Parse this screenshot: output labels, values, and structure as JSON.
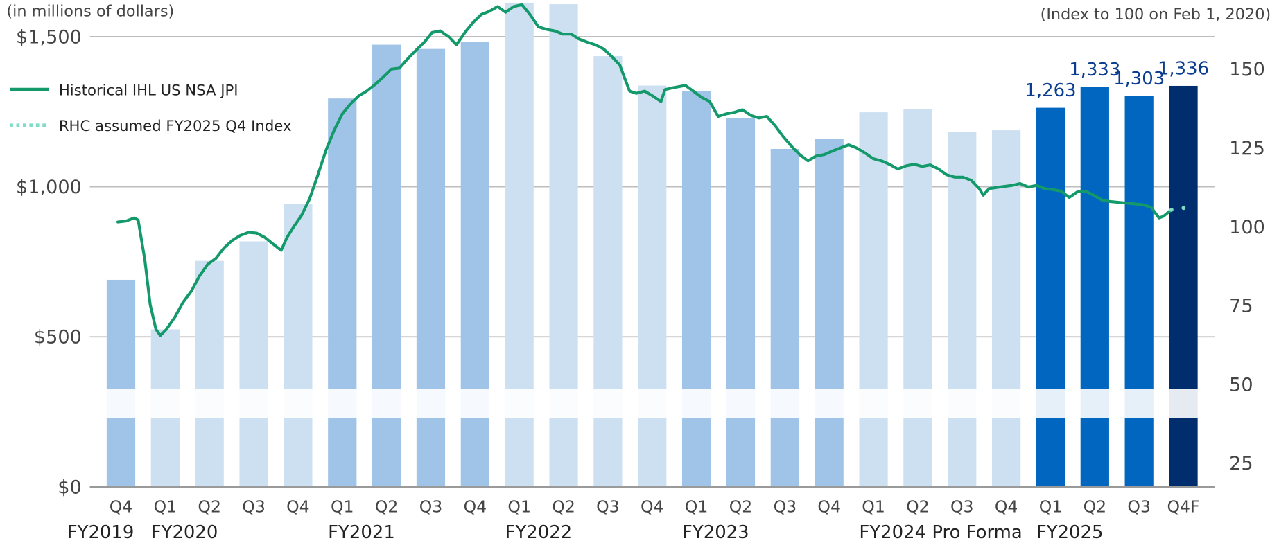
{
  "chart_data": {
    "type": "bar_line",
    "left_axis_note": "(in millions of dollars)",
    "right_axis_note": "(Index to 100 on Feb 1, 2020)",
    "categories": [
      "Q4",
      "Q1",
      "Q2",
      "Q3",
      "Q4",
      "Q1",
      "Q2",
      "Q3",
      "Q4",
      "Q1",
      "Q2",
      "Q3",
      "Q4",
      "Q1",
      "Q2",
      "Q3",
      "Q4",
      "Q1",
      "Q2",
      "Q3",
      "Q4",
      "Q1",
      "Q2",
      "Q3",
      "Q4F"
    ],
    "groups": [
      {
        "name": "FY2019",
        "count": 1
      },
      {
        "name": "FY2020",
        "count": 4
      },
      {
        "name": "FY2021",
        "count": 4
      },
      {
        "name": "FY2022",
        "count": 4
      },
      {
        "name": "FY2023",
        "count": 4
      },
      {
        "name": "FY2024 Pro Forma",
        "count": 4
      },
      {
        "name": "FY2025",
        "count": 4
      }
    ],
    "ylim": [
      0,
      1622
    ],
    "yticks": [
      {
        "value": 0,
        "label": "$0"
      },
      {
        "value": 500,
        "label": "$500"
      },
      {
        "value": 1000,
        "label": "$1,000"
      },
      {
        "value": 1500,
        "label": "$1,500"
      }
    ],
    "y2lim": [
      17.5,
      171.9
    ],
    "y2ticks": [
      25,
      50,
      75,
      100,
      125,
      150
    ],
    "grid": true,
    "bars": {
      "values": [
        690,
        525,
        753,
        818,
        942,
        1294,
        1473,
        1459,
        1483,
        1613,
        1608,
        1435,
        1337,
        1318,
        1229,
        1126,
        1159,
        1248,
        1259,
        1183,
        1188,
        1263,
        1333,
        1303,
        1336
      ],
      "value_labels": [
        null,
        null,
        null,
        null,
        null,
        null,
        null,
        null,
        null,
        null,
        null,
        null,
        null,
        null,
        null,
        null,
        null,
        null,
        null,
        null,
        null,
        "1,263",
        "1,333",
        "1,303",
        "1,336"
      ],
      "colors": [
        "#a0c4e8",
        "#cde0f2",
        "#cde0f2",
        "#cde0f2",
        "#cde0f2",
        "#a0c4e8",
        "#a0c4e8",
        "#a0c4e8",
        "#a0c4e8",
        "#cde0f2",
        "#cde0f2",
        "#cde0f2",
        "#cde0f2",
        "#a0c4e8",
        "#a0c4e8",
        "#a0c4e8",
        "#a0c4e8",
        "#cde0f2",
        "#cde0f2",
        "#cde0f2",
        "#cde0f2",
        "#0066c0",
        "#0066c0",
        "#0066c0",
        "#002d6e"
      ]
    },
    "series": [
      {
        "name": "Historical IHL US NSA JPI",
        "color": "#14996a",
        "style": "solid",
        "axis": "y2",
        "x": [
          -0.07,
          0.11,
          0.3,
          0.39,
          0.54,
          0.66,
          0.79,
          0.89,
          1.03,
          1.22,
          1.4,
          1.59,
          1.77,
          1.96,
          2.14,
          2.33,
          2.51,
          2.69,
          2.88,
          3.06,
          3.25,
          3.43,
          3.62,
          3.75,
          3.89,
          4.08,
          4.26,
          4.45,
          4.63,
          4.82,
          5.0,
          5.18,
          5.37,
          5.55,
          5.74,
          5.92,
          6.11,
          6.29,
          6.48,
          6.66,
          6.85,
          7.03,
          7.21,
          7.4,
          7.58,
          7.77,
          7.95,
          8.14,
          8.32,
          8.51,
          8.69,
          8.87,
          9.06,
          9.24,
          9.43,
          9.61,
          9.8,
          9.98,
          10.17,
          10.35,
          10.54,
          10.72,
          10.9,
          11.09,
          11.27,
          11.37,
          11.49,
          11.64,
          11.83,
          12.01,
          12.2,
          12.29,
          12.47,
          12.75,
          12.93,
          13.12,
          13.3,
          13.49,
          13.67,
          13.86,
          14.04,
          14.23,
          14.41,
          14.59,
          14.78,
          14.96,
          15.15,
          15.33,
          15.52,
          15.7,
          15.89,
          16.07,
          16.25,
          16.44,
          16.62,
          16.81,
          16.99,
          17.18,
          17.36,
          17.55,
          17.73,
          17.92,
          18.1,
          18.28,
          18.47,
          18.65,
          18.84,
          19.02,
          19.21,
          19.39,
          19.48,
          19.61,
          19.85,
          20.13,
          20.31,
          20.5,
          20.68,
          20.87,
          21.05,
          21.24,
          21.42,
          21.61,
          21.79,
          21.97,
          22.16,
          22.34,
          22.71,
          23.08,
          23.27,
          23.45,
          23.55,
          23.73
        ],
        "values": [
          101.5,
          101.8,
          102.8,
          102.1,
          89.4,
          75.3,
          67.5,
          65.5,
          67.5,
          71.4,
          76.0,
          79.6,
          84.3,
          88.1,
          89.9,
          93.3,
          95.6,
          97.2,
          98.2,
          98.0,
          96.6,
          94.6,
          92.5,
          96.6,
          99.7,
          103.6,
          108.8,
          116.5,
          124.2,
          130.7,
          135.8,
          138.9,
          141.5,
          143.0,
          145.1,
          147.4,
          150.0,
          150.3,
          153.3,
          155.9,
          158.5,
          161.6,
          162.1,
          160.3,
          157.7,
          161.6,
          164.7,
          167.3,
          168.3,
          169.8,
          168.0,
          169.8,
          170.4,
          167.3,
          163.4,
          162.6,
          162.1,
          161.1,
          161.1,
          159.5,
          158.5,
          157.7,
          156.4,
          153.9,
          151.3,
          147.4,
          143.0,
          142.3,
          143.0,
          141.5,
          139.7,
          143.5,
          144.1,
          144.8,
          143.0,
          141.0,
          139.7,
          135.0,
          135.8,
          136.3,
          137.1,
          135.3,
          134.5,
          135.0,
          132.0,
          128.6,
          125.5,
          122.9,
          120.9,
          122.4,
          122.9,
          124.0,
          125.0,
          126.0,
          125.0,
          123.4,
          121.6,
          120.9,
          119.8,
          118.3,
          119.3,
          119.8,
          119.1,
          119.6,
          118.3,
          116.5,
          115.7,
          115.7,
          114.7,
          112.1,
          110.0,
          112.1,
          112.6,
          113.1,
          113.7,
          112.6,
          113.1,
          112.1,
          111.8,
          111.3,
          109.3,
          111.1,
          111.3,
          110.0,
          108.5,
          108.0,
          107.5,
          107.0,
          106.2,
          102.8,
          103.3,
          105.4
        ]
      },
      {
        "name": "RHC assumed FY2025 Q4 Index",
        "color": "#7fdcc8",
        "style": "dotted",
        "axis": "y2",
        "x": [
          23.73,
          24.23
        ],
        "values": [
          105.4,
          106.4
        ]
      }
    ]
  }
}
